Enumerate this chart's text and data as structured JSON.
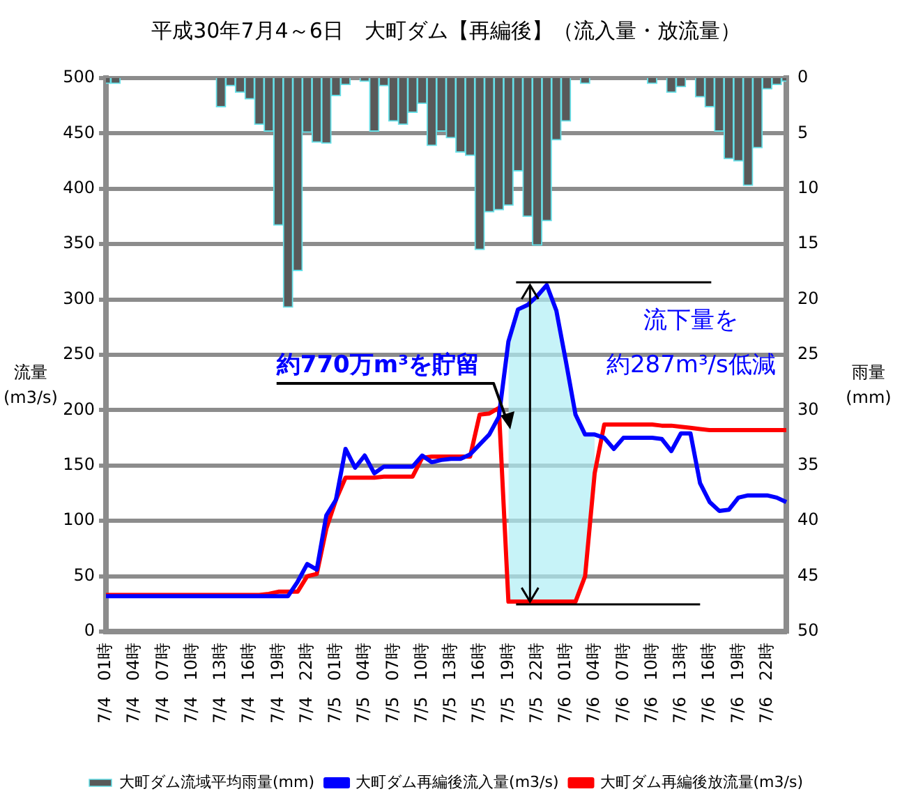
{
  "chart_data": {
    "type": "line",
    "title": "平成30年7月4～6日　大町ダム【再編後】（流入量・放流量）",
    "ylabel": "流量\n(m3/s)",
    "y2label": "雨量\n(mm)",
    "categories": [
      "7/4 01時",
      null,
      null,
      "7/4 04時",
      null,
      null,
      "7/4 07時",
      null,
      null,
      "7/4 10時",
      null,
      null,
      "7/4 13時",
      null,
      null,
      "7/4 16時",
      null,
      null,
      "7/4 19時",
      null,
      null,
      "7/4 22時",
      null,
      null,
      "7/5 01時",
      null,
      null,
      "7/5 04時",
      null,
      null,
      "7/5 07時",
      null,
      null,
      "7/5 10時",
      null,
      null,
      "7/5 13時",
      null,
      null,
      "7/5 16時",
      null,
      null,
      "7/5 19時",
      null,
      null,
      "7/5 22時",
      null,
      null,
      "7/6 01時",
      null,
      null,
      "7/6 04時",
      null,
      null,
      "7/6 07時",
      null,
      null,
      "7/6 10時",
      null,
      null,
      "7/6 13時",
      null,
      null,
      "7/6 16時",
      null,
      null,
      "7/6 19時",
      null,
      null,
      "7/6 22時",
      null,
      null
    ],
    "series": [
      {
        "name": "大町ダム流域平均雨量(mm)",
        "type": "bar",
        "axis": "y2",
        "color": "#595959",
        "values": [
          0.5,
          0.5,
          0,
          0,
          0,
          0,
          0,
          0,
          0,
          0,
          0,
          0,
          2.6,
          0.7,
          1.3,
          1.9,
          4.2,
          4.8,
          13.3,
          20.7,
          17.4,
          4.9,
          5.8,
          5.9,
          1.6,
          0.6,
          0,
          0.3,
          4.8,
          0.7,
          3.9,
          4.2,
          3.1,
          2.3,
          6.1,
          4.8,
          5.4,
          6.7,
          7.0,
          15.5,
          12.1,
          11.9,
          11.5,
          8.4,
          12.5,
          15.1,
          12.9,
          5.6,
          3.9,
          0,
          0.5,
          0,
          0,
          0,
          0,
          0,
          0,
          0.5,
          0,
          1.3,
          0.8,
          0,
          1.7,
          2.6,
          4.8,
          7.3,
          7.5,
          9.7,
          6.3,
          1.0,
          0.6,
          0.3
        ]
      },
      {
        "name": "大町ダム再編後流入量(m3/s)",
        "color": "#0000ff",
        "lower": [
          null,
          null,
          null,
          null,
          null,
          null,
          null,
          null,
          null,
          null,
          null,
          null,
          null,
          null,
          null,
          null,
          null,
          null,
          null,
          null,
          null,
          null,
          null,
          null,
          null,
          null,
          null,
          null,
          null,
          null,
          null,
          null,
          null,
          null,
          null,
          null,
          null,
          null,
          null,
          null,
          null,
          null,
          27,
          27,
          27,
          27,
          27,
          27,
          27,
          27,
          50,
          143,
          null,
          null,
          null,
          null,
          null,
          null,
          null,
          null,
          null,
          null,
          null,
          null,
          null,
          null,
          null,
          null,
          null,
          null,
          null,
          null
        ],
        "upper": [
          null,
          null,
          null,
          null,
          null,
          null,
          null,
          null,
          null,
          null,
          null,
          null,
          null,
          null,
          null,
          null,
          null,
          null,
          null,
          null,
          null,
          null,
          null,
          null,
          null,
          null,
          null,
          null,
          null,
          null,
          null,
          null,
          null,
          null,
          null,
          null,
          null,
          null,
          null,
          null,
          null,
          null,
          262,
          291,
          295,
          303,
          313,
          290,
          244,
          196,
          178,
          178,
          null,
          null,
          null,
          null,
          null,
          null,
          null,
          null,
          null,
          null,
          null,
          null,
          null,
          null,
          null,
          null,
          null,
          null,
          null,
          null
        ],
        "values": [
          32,
          32,
          32,
          32,
          32,
          32,
          32,
          32,
          32,
          32,
          32,
          32,
          32,
          32,
          32,
          32,
          32,
          32,
          32,
          32,
          45,
          61,
          56,
          105,
          119,
          165,
          148,
          159,
          143,
          149,
          149,
          149,
          149,
          159,
          153,
          155,
          156,
          156,
          160,
          169,
          178,
          194,
          262,
          291,
          295,
          303,
          313,
          290,
          244,
          196,
          178,
          178,
          175,
          165,
          175,
          175,
          175,
          175,
          174,
          163,
          179,
          179,
          134,
          117,
          109,
          110,
          121,
          123,
          123,
          123,
          121,
          117
        ]
      },
      {
        "name": "大町ダム再編後放流量(m3/s)",
        "color": "#ff0000",
        "values": [
          33,
          33,
          33,
          33,
          33,
          33,
          33,
          33,
          33,
          33,
          33,
          33,
          33,
          33,
          33,
          33,
          33,
          34,
          36,
          36,
          36,
          50,
          52,
          93,
          119,
          139,
          139,
          139,
          139,
          140,
          140,
          140,
          140,
          157,
          158,
          158,
          158,
          158,
          158,
          196,
          197,
          202,
          27,
          27,
          27,
          27,
          27,
          27,
          27,
          27,
          50,
          143,
          187,
          187,
          187,
          187,
          187,
          187,
          186,
          186,
          185,
          184,
          183,
          182,
          182,
          182,
          182,
          182,
          182,
          182,
          182,
          182
        ]
      }
    ],
    "ylim": [
      0,
      500
    ],
    "yticks": [
      0,
      50,
      100,
      150,
      200,
      250,
      300,
      350,
      400,
      450,
      500
    ],
    "y2lim": [
      50,
      0
    ],
    "y2ticks": [
      0,
      5,
      10,
      15,
      20,
      25,
      30,
      35,
      40,
      45,
      50
    ],
    "annotations": [
      "約770万m³を貯留",
      "流下量を",
      "約287m³/s低減"
    ],
    "grid": "y",
    "legend": "bottom",
    "marker": "none",
    "line_style": "solid"
  }
}
